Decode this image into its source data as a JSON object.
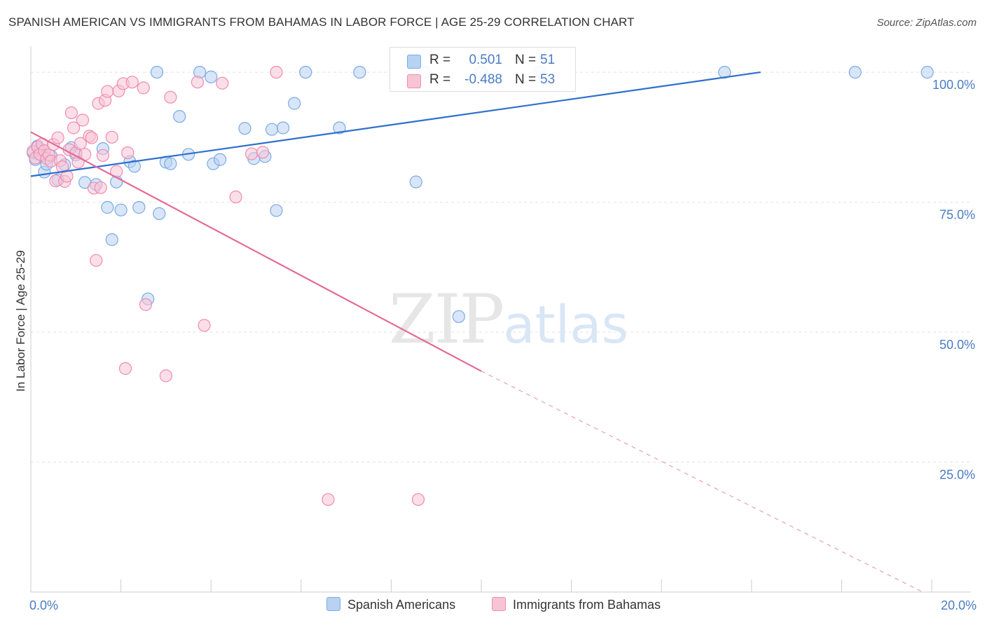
{
  "chart_data": {
    "type": "scatter",
    "title": "SPANISH AMERICAN VS IMMIGRANTS FROM BAHAMAS IN LABOR FORCE | AGE 25-29 CORRELATION CHART",
    "source": "Source: ZipAtlas.com",
    "ylabel": "In Labor Force | Age 25-29",
    "xlim": [
      0,
      20
    ],
    "ylim": [
      0,
      105
    ],
    "y_ticks": [
      {
        "value": 100,
        "label": "100.0%"
      },
      {
        "value": 75,
        "label": "75.0%"
      },
      {
        "value": 50,
        "label": "50.0%"
      },
      {
        "value": 25,
        "label": "25.0%"
      }
    ],
    "x_tick_labels": {
      "min": "0.0%",
      "max": "20.0%"
    },
    "grid": true,
    "legend_position": "top-center",
    "watermark": {
      "main": "ZIP",
      "accent": "atlas"
    },
    "series": [
      {
        "name": "Spanish Americans",
        "color": "#7aaae6",
        "fill": "#b8d2f2",
        "stats": {
          "r_label": "R =",
          "r": "0.501",
          "n_label": "N =",
          "n": "51"
        },
        "trend": {
          "x0": 0.0,
          "y0": 80.0,
          "x1": 16.2,
          "y1": 100.0
        },
        "points": [
          [
            0.05,
            84.5
          ],
          [
            0.1,
            83.2
          ],
          [
            0.15,
            85.8
          ],
          [
            0.2,
            85.1
          ],
          [
            0.25,
            84.0
          ],
          [
            0.3,
            80.8
          ],
          [
            0.35,
            82.3
          ],
          [
            0.45,
            83.9
          ],
          [
            0.6,
            79.3
          ],
          [
            0.75,
            82.2
          ],
          [
            0.9,
            85.5
          ],
          [
            1.0,
            84.1
          ],
          [
            1.2,
            78.8
          ],
          [
            1.45,
            78.4
          ],
          [
            1.6,
            85.3
          ],
          [
            1.7,
            74.0
          ],
          [
            1.8,
            67.8
          ],
          [
            1.9,
            78.9
          ],
          [
            2.0,
            73.5
          ],
          [
            2.2,
            82.8
          ],
          [
            2.3,
            81.9
          ],
          [
            2.4,
            74.0
          ],
          [
            2.6,
            56.4
          ],
          [
            2.8,
            100.0
          ],
          [
            2.85,
            72.8
          ],
          [
            3.0,
            82.7
          ],
          [
            3.1,
            82.4
          ],
          [
            3.3,
            91.5
          ],
          [
            3.5,
            84.2
          ],
          [
            3.75,
            100.0
          ],
          [
            4.0,
            99.1
          ],
          [
            4.05,
            82.4
          ],
          [
            4.2,
            83.2
          ],
          [
            4.75,
            89.2
          ],
          [
            4.95,
            83.4
          ],
          [
            5.2,
            83.8
          ],
          [
            5.35,
            89.0
          ],
          [
            5.45,
            73.4
          ],
          [
            5.6,
            89.3
          ],
          [
            5.85,
            94.0
          ],
          [
            6.1,
            100.0
          ],
          [
            6.85,
            89.3
          ],
          [
            7.3,
            100.0
          ],
          [
            8.55,
            78.9
          ],
          [
            8.75,
            100.0
          ],
          [
            9.5,
            53.0
          ],
          [
            10.0,
            100.0
          ],
          [
            11.3,
            100.0
          ],
          [
            15.4,
            100.0
          ],
          [
            18.3,
            100.0
          ],
          [
            19.9,
            100.0
          ]
        ]
      },
      {
        "name": "Immigrants from Bahamas",
        "color": "#f08bb0",
        "fill": "#f7c4d6",
        "stats": {
          "r_label": "R =",
          "r": "-0.488",
          "n_label": "N =",
          "n": "53"
        },
        "trend": {
          "x0": 0.0,
          "y0": 88.5,
          "x1": 10.0,
          "y1": 42.5,
          "dash_x1": 19.8,
          "dash_y1": 0.0
        },
        "points": [
          [
            0.05,
            84.8
          ],
          [
            0.1,
            83.5
          ],
          [
            0.15,
            85.6
          ],
          [
            0.2,
            84.2
          ],
          [
            0.25,
            86.2
          ],
          [
            0.3,
            84.9
          ],
          [
            0.35,
            83.4
          ],
          [
            0.4,
            84.1
          ],
          [
            0.45,
            82.9
          ],
          [
            0.5,
            86.1
          ],
          [
            0.55,
            79.1
          ],
          [
            0.6,
            87.4
          ],
          [
            0.65,
            83.0
          ],
          [
            0.7,
            81.8
          ],
          [
            0.75,
            79.0
          ],
          [
            0.8,
            80.0
          ],
          [
            0.85,
            85.1
          ],
          [
            0.9,
            92.2
          ],
          [
            0.95,
            89.3
          ],
          [
            1.0,
            84.5
          ],
          [
            1.05,
            82.7
          ],
          [
            1.1,
            86.3
          ],
          [
            1.15,
            90.8
          ],
          [
            1.2,
            84.2
          ],
          [
            1.3,
            87.7
          ],
          [
            1.35,
            87.4
          ],
          [
            1.4,
            77.7
          ],
          [
            1.45,
            63.8
          ],
          [
            1.5,
            94.0
          ],
          [
            1.55,
            77.8
          ],
          [
            1.6,
            84.0
          ],
          [
            1.65,
            94.6
          ],
          [
            1.7,
            96.3
          ],
          [
            1.8,
            87.5
          ],
          [
            1.9,
            80.9
          ],
          [
            1.95,
            96.4
          ],
          [
            2.05,
            97.8
          ],
          [
            2.1,
            43.0
          ],
          [
            2.15,
            84.5
          ],
          [
            2.25,
            98.1
          ],
          [
            2.5,
            97.0
          ],
          [
            2.55,
            55.3
          ],
          [
            3.0,
            41.6
          ],
          [
            3.1,
            95.2
          ],
          [
            3.7,
            98.1
          ],
          [
            3.85,
            51.3
          ],
          [
            4.25,
            97.9
          ],
          [
            4.55,
            76.0
          ],
          [
            4.9,
            84.3
          ],
          [
            5.15,
            84.6
          ],
          [
            5.45,
            100.0
          ],
          [
            6.6,
            17.8
          ],
          [
            8.6,
            17.8
          ]
        ]
      }
    ]
  }
}
